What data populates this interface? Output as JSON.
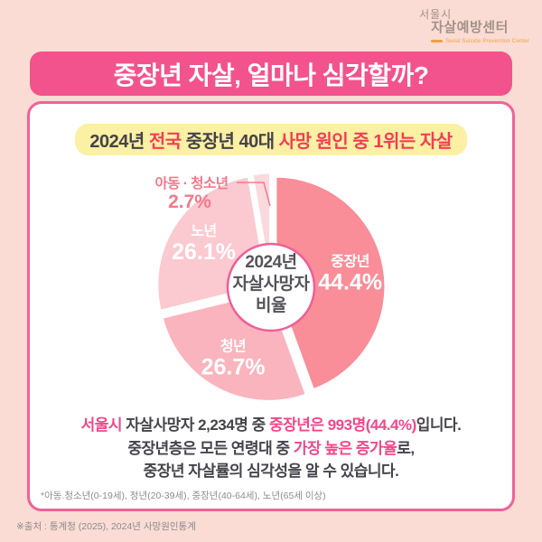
{
  "logo": {
    "line1": "서울시",
    "line2": "자살예방센터",
    "subtitle": "Seoul Suicide Prevention Center"
  },
  "title": "중장년 자살, 얼마나 심각할까?",
  "stat_banner": {
    "segments": [
      {
        "t": "2024년 ",
        "c": "dark"
      },
      {
        "t": "전국",
        "c": "red"
      },
      {
        "t": " 중장년 40대 ",
        "c": "dark"
      },
      {
        "t": "사망 원인 중 1위는 자살",
        "c": "red"
      }
    ]
  },
  "chart_data": {
    "type": "pie",
    "style": "donut-exploded",
    "center_lines": [
      "2024년",
      "자살사망자",
      "비율"
    ],
    "categories": [
      "중장년",
      "청년",
      "노년",
      "아동 · 청소년"
    ],
    "values": [
      44.4,
      26.7,
      26.1,
      2.7
    ],
    "slices": [
      {
        "label": "중장년",
        "value": 44.4,
        "pct_label": "44.4%",
        "color": "#F98D98",
        "label_inside": true
      },
      {
        "label": "청년",
        "value": 26.7,
        "pct_label": "26.7%",
        "color": "#FAB4BE",
        "label_inside": true
      },
      {
        "label": "노년",
        "value": 26.1,
        "pct_label": "26.1%",
        "color": "#FBC9D0",
        "label_inside": true
      },
      {
        "label": "아동 · 청소년",
        "value": 2.7,
        "pct_label": "2.7%",
        "color": "#FAD9DE",
        "label_inside": false
      }
    ],
    "start_angle_deg": 0,
    "direction": "clockwise",
    "legend_position": "none"
  },
  "body": {
    "lines": [
      [
        {
          "t": "서울시",
          "c": "pink"
        },
        {
          "t": " 자살사망자 2,234명 중 ",
          "c": "dark"
        },
        {
          "t": "중장년은 993명(44.4%)",
          "c": "pink"
        },
        {
          "t": "입니다.",
          "c": "dark"
        }
      ],
      [
        {
          "t": "중장년층은 모든 연령대 중 ",
          "c": "dark"
        },
        {
          "t": "가장 높은 증가율",
          "c": "pink"
        },
        {
          "t": "로,",
          "c": "dark"
        }
      ],
      [
        {
          "t": "중장년 자살률의 심각성을 알 수 있습니다.",
          "c": "dark"
        }
      ]
    ]
  },
  "footnote": "*아동.청소년(0-19세), 청년(20-39세), 중장년(40-64세), 노년(65세 이상)",
  "source": "※출처 : 통계청 (2025), 2024년 사망원인통계",
  "colors": {
    "page_bg": "#FADCD4",
    "banner_bg": "#F3538C",
    "card_border": "#EF6298",
    "highlight_yellow": "#FBF0A3",
    "accent_pink": "#F2478A",
    "accent_red": "#F23E55",
    "text_dark": "#45434B",
    "ring": "#EE5F98",
    "callout_pink": "#F3798D",
    "center_text": "#56535C"
  }
}
